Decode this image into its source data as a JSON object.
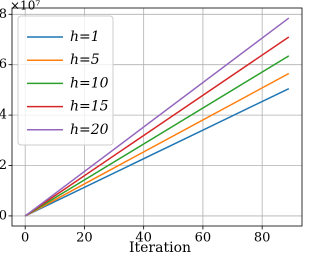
{
  "chart_data": {
    "type": "line",
    "x_label": "Iteration",
    "y_multiplier": "×10⁷",
    "x": [
      0,
      89
    ],
    "series": [
      {
        "name": "h=1",
        "color": "#1f77b4",
        "values": [
          0,
          5.05
        ]
      },
      {
        "name": "h=5",
        "color": "#ff7f0e",
        "values": [
          0,
          5.65
        ]
      },
      {
        "name": "h=10",
        "color": "#2ca02c",
        "values": [
          0,
          6.35
        ]
      },
      {
        "name": "h=15",
        "color": "#d62728",
        "values": [
          0,
          7.1
        ]
      },
      {
        "name": "h=20",
        "color": "#9467bd",
        "values": [
          0,
          7.85
        ]
      }
    ],
    "xlim": [
      -4.45,
      93.45
    ],
    "xticks": [
      0,
      20,
      40,
      60,
      80
    ],
    "ylim": [
      -0.4,
      8.25
    ],
    "yticks": [
      0,
      2,
      4,
      6,
      8
    ],
    "grid": true,
    "legend": "upper-left"
  }
}
